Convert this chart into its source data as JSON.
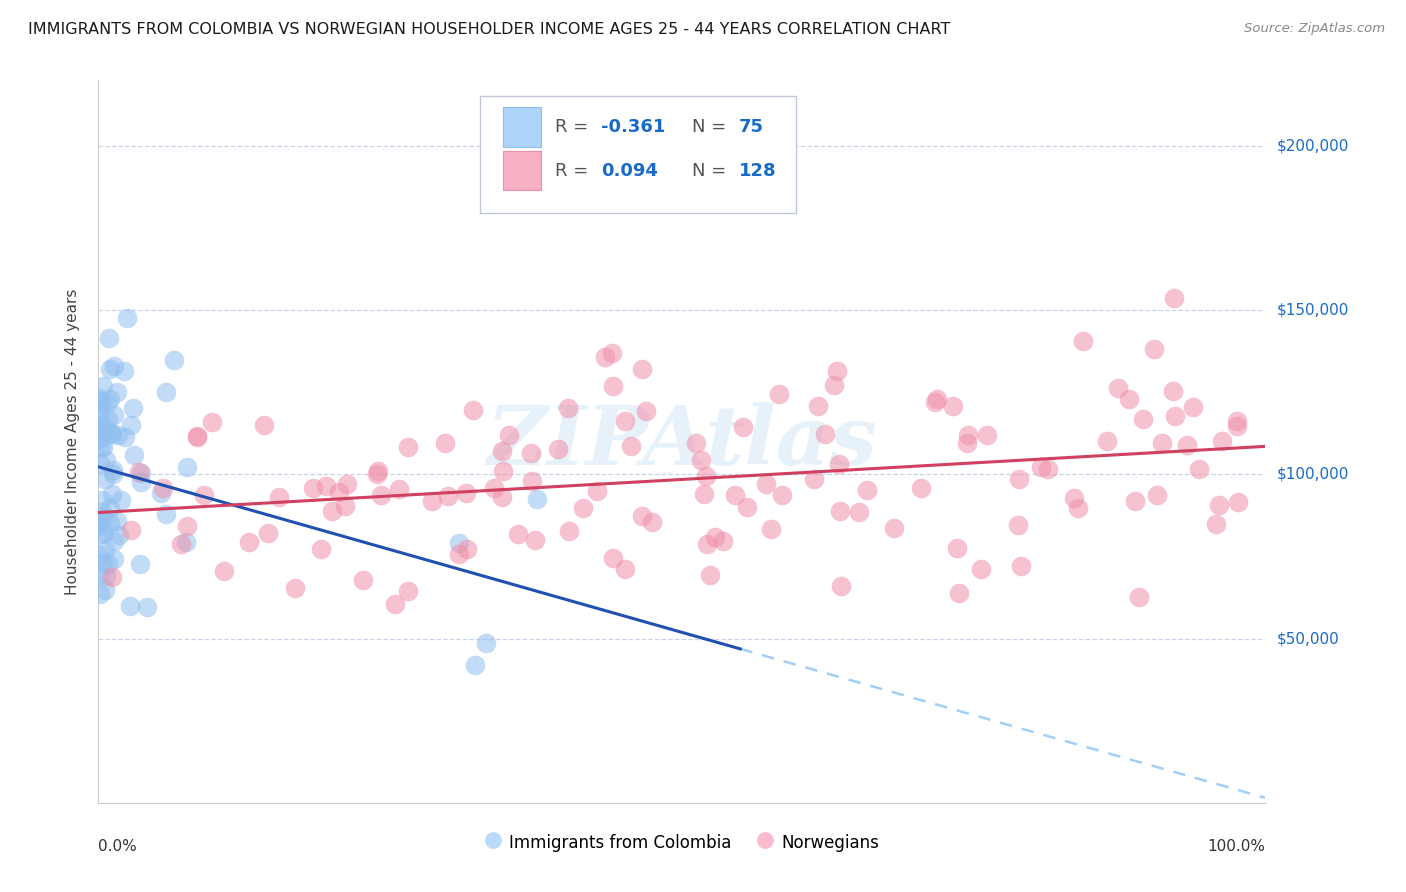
{
  "title": "IMMIGRANTS FROM COLOMBIA VS NORWEGIAN HOUSEHOLDER INCOME AGES 25 - 44 YEARS CORRELATION CHART",
  "source": "Source: ZipAtlas.com",
  "ylabel": "Householder Income Ages 25 - 44 years",
  "ytick_labels": [
    "$50,000",
    "$100,000",
    "$150,000",
    "$200,000"
  ],
  "ytick_values": [
    50000,
    100000,
    150000,
    200000
  ],
  "ylim": [
    0,
    220000
  ],
  "xlim": [
    0.0,
    1.0
  ],
  "group1_R": -0.361,
  "group1_N": 75,
  "group2_R": 0.094,
  "group2_N": 128,
  "scatter_color1": "#90bff0",
  "scatter_color2": "#f090a8",
  "line_color1": "#2050b0",
  "line_color2": "#d04060",
  "dashed_color": "#a0d0f8",
  "watermark": "ZIPAtlas",
  "background_color": "#ffffff",
  "grid_color": "#c8d4e8",
  "title_fontsize": 11.5,
  "ytick_color": "#1a6bc9",
  "seed": 99
}
